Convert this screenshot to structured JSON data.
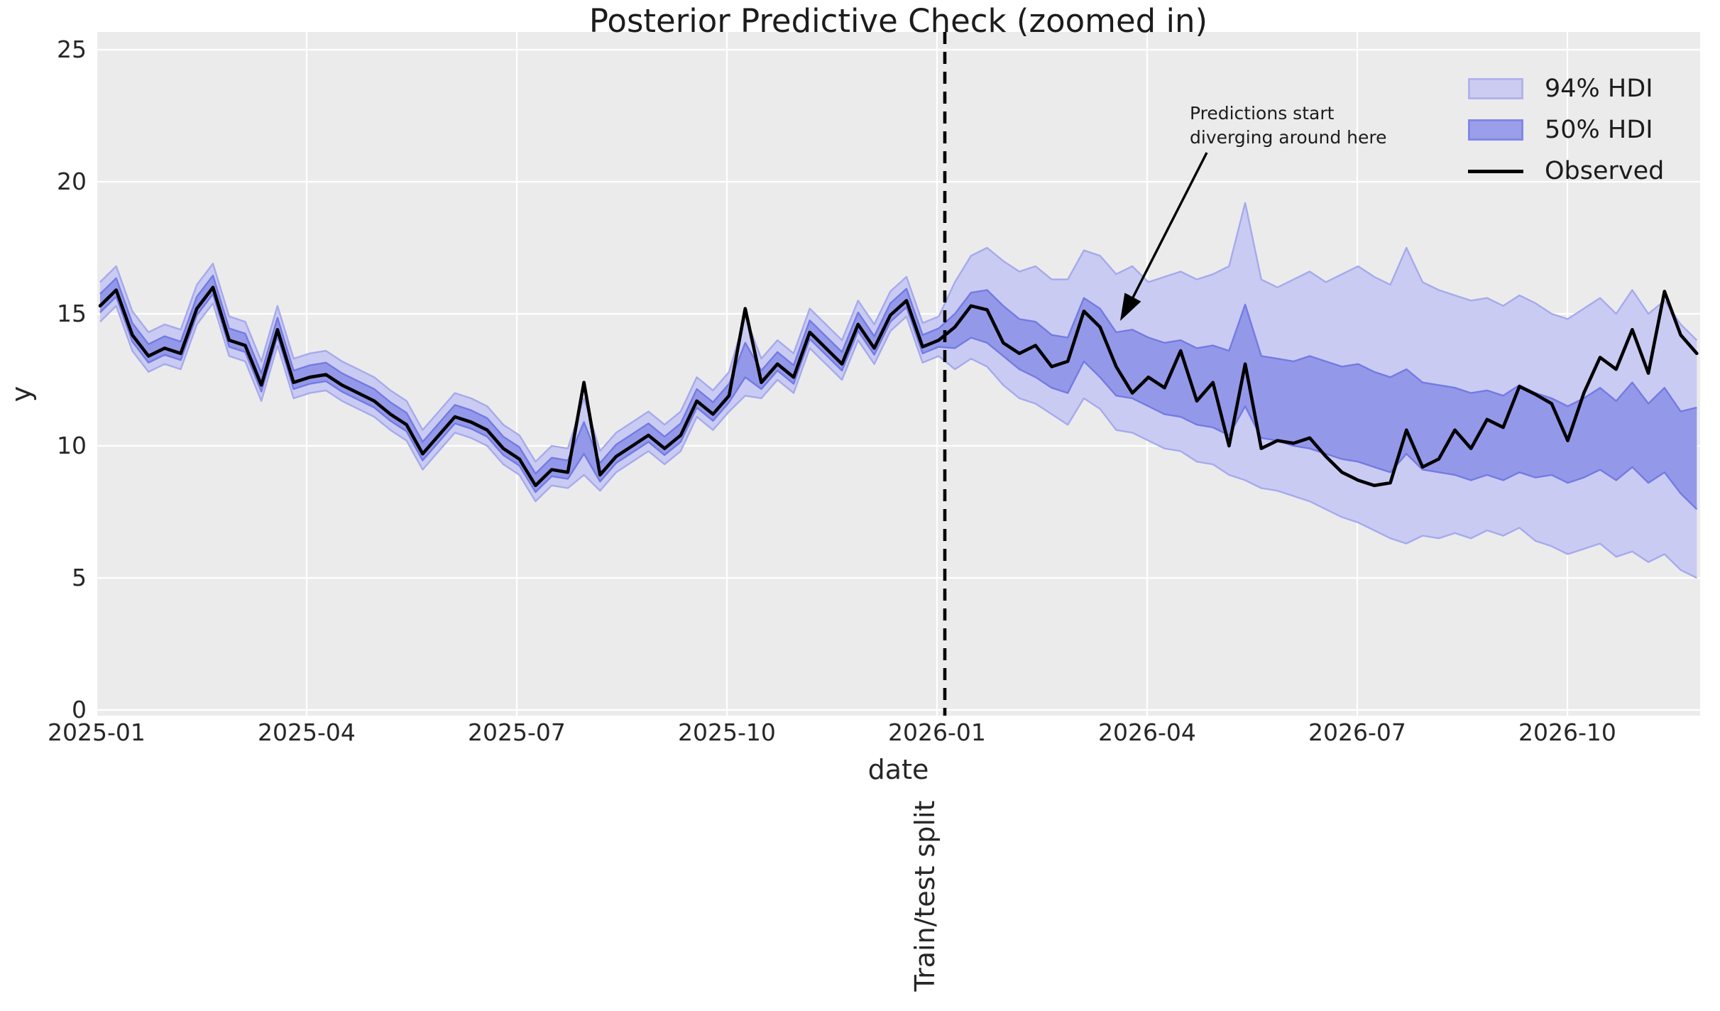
{
  "title": "Posterior Predictive Check (zoomed in)",
  "axes": {
    "xlabel": "date",
    "ylabel": "y",
    "x_tick_labels": [
      "2025-01",
      "2025-04",
      "2025-07",
      "2025-10",
      "2026-01",
      "2026-04",
      "2026-07",
      "2026-10"
    ],
    "y_tick_labels": [
      "0",
      "5",
      "10",
      "15",
      "20",
      "25"
    ]
  },
  "legend": {
    "entries": [
      {
        "label": "94% HDI",
        "swatch": "band-light"
      },
      {
        "label": "50% HDI",
        "swatch": "band-dark"
      },
      {
        "label": "Observed",
        "swatch": "black-line"
      }
    ]
  },
  "annotation": {
    "text": "Predictions start\ndiverging around here"
  },
  "split_label": "Train/test split",
  "colors": {
    "axes_background": "#ebebeb",
    "figure_background": "#ffffff",
    "gridline": "#ffffff",
    "hdi94_fill": "#c9cbf2",
    "hdi94_edge": "#a6aaec",
    "hdi50_fill": "#9399e8",
    "hdi50_edge": "#747ae3",
    "observed_line": "#000000",
    "split_line": "#000000",
    "text": "#262626"
  },
  "chart_data": {
    "type": "line",
    "description": "Posterior predictive check: observed weekly series with 94% and 50% HDI bands; vertical dashed line marks train/test split at 2026-01.",
    "x_start": "2025-01-05",
    "x_freq": "weekly",
    "n_points": 100,
    "split_index": 52,
    "ylim": [
      0,
      25
    ],
    "y_gridline_values": [
      0,
      5,
      10,
      15,
      20,
      25
    ],
    "observed": [
      15.3,
      15.9,
      14.2,
      13.4,
      13.7,
      13.5,
      15.2,
      16.0,
      14.0,
      13.8,
      12.3,
      14.4,
      12.4,
      12.6,
      12.7,
      12.3,
      12.0,
      11.7,
      11.2,
      10.8,
      9.7,
      10.4,
      11.1,
      10.9,
      10.6,
      9.9,
      9.5,
      8.5,
      9.1,
      9.0,
      12.4,
      8.9,
      9.6,
      10.0,
      10.4,
      9.9,
      10.4,
      11.7,
      11.2,
      11.9,
      15.2,
      12.4,
      13.1,
      12.6,
      14.3,
      13.7,
      13.1,
      14.6,
      13.7,
      14.95,
      15.5,
      13.75,
      14.0,
      14.5,
      15.3,
      15.15,
      13.9,
      13.5,
      13.8,
      13.0,
      13.2,
      15.1,
      14.5,
      13.0,
      12.0,
      12.6,
      12.2,
      13.6,
      11.7,
      12.4,
      10.0,
      13.1,
      9.9,
      10.2,
      10.1,
      10.3,
      9.6,
      9.0,
      8.7,
      8.5,
      8.6,
      10.6,
      9.2,
      9.5,
      10.6,
      9.9,
      11.0,
      10.7,
      12.25,
      11.95,
      11.6,
      10.2,
      12.0,
      13.35,
      12.9,
      14.4,
      12.75,
      15.85,
      14.2,
      13.5
    ],
    "hdi94_lower": [
      14.7,
      15.3,
      13.6,
      12.8,
      13.1,
      12.9,
      14.6,
      15.4,
      13.4,
      13.2,
      11.7,
      13.8,
      11.8,
      12.0,
      12.1,
      11.7,
      11.4,
      11.1,
      10.6,
      10.2,
      9.1,
      9.8,
      10.5,
      10.3,
      10.0,
      9.3,
      8.9,
      7.9,
      8.5,
      8.4,
      8.9,
      8.3,
      9.0,
      9.4,
      9.8,
      9.3,
      9.8,
      11.1,
      10.6,
      11.3,
      11.9,
      11.8,
      12.5,
      12.0,
      13.7,
      13.1,
      12.5,
      14.0,
      13.1,
      14.35,
      14.9,
      13.15,
      13.4,
      12.9,
      13.3,
      13.0,
      12.3,
      11.8,
      11.6,
      11.2,
      10.8,
      11.8,
      11.4,
      10.6,
      10.5,
      10.2,
      9.9,
      9.8,
      9.4,
      9.3,
      8.9,
      8.7,
      8.4,
      8.3,
      8.1,
      7.9,
      7.6,
      7.3,
      7.1,
      6.8,
      6.5,
      6.3,
      6.6,
      6.5,
      6.7,
      6.5,
      6.8,
      6.6,
      6.9,
      6.4,
      6.2,
      5.9,
      6.1,
      6.3,
      5.8,
      6.0,
      5.6,
      5.9,
      5.3,
      5.0
    ],
    "hdi94_upper": [
      16.2,
      16.8,
      15.1,
      14.3,
      14.6,
      14.4,
      16.1,
      16.9,
      14.9,
      14.7,
      13.2,
      15.3,
      13.3,
      13.5,
      13.6,
      13.2,
      12.9,
      12.6,
      12.1,
      11.7,
      10.6,
      11.3,
      12.0,
      11.8,
      11.5,
      10.8,
      10.4,
      9.4,
      10.0,
      9.9,
      11.8,
      9.8,
      10.5,
      10.9,
      11.3,
      10.8,
      11.3,
      12.6,
      12.1,
      12.8,
      14.9,
      13.3,
      14.0,
      13.5,
      15.2,
      14.6,
      14.0,
      15.5,
      14.6,
      15.85,
      16.4,
      14.65,
      14.9,
      16.2,
      17.2,
      17.5,
      17.0,
      16.6,
      16.8,
      16.3,
      16.3,
      17.4,
      17.2,
      16.5,
      16.8,
      16.2,
      16.4,
      16.6,
      16.3,
      16.5,
      16.8,
      19.2,
      16.3,
      16.0,
      16.3,
      16.6,
      16.2,
      16.5,
      16.8,
      16.4,
      16.1,
      17.5,
      16.2,
      15.9,
      15.7,
      15.5,
      15.6,
      15.3,
      15.7,
      15.4,
      15.0,
      14.8,
      15.2,
      15.6,
      15.0,
      15.9,
      15.0,
      15.5,
      14.6,
      14.0
    ],
    "hdi50_lower": [
      15.05,
      15.65,
      13.95,
      13.15,
      13.45,
      13.25,
      14.95,
      15.75,
      13.75,
      13.55,
      12.05,
      14.15,
      12.15,
      12.35,
      12.45,
      12.05,
      11.75,
      11.45,
      10.95,
      10.55,
      9.45,
      10.15,
      10.85,
      10.65,
      10.35,
      9.65,
      9.25,
      8.25,
      8.85,
      8.75,
      9.7,
      8.65,
      9.35,
      9.75,
      10.15,
      9.65,
      10.15,
      11.45,
      10.95,
      11.65,
      12.6,
      12.15,
      12.85,
      12.35,
      14.05,
      13.45,
      12.85,
      14.35,
      13.45,
      14.7,
      15.25,
      13.5,
      13.75,
      13.7,
      14.1,
      13.9,
      13.4,
      12.9,
      12.6,
      12.2,
      12.0,
      13.2,
      12.6,
      11.9,
      11.8,
      11.5,
      11.2,
      11.1,
      10.8,
      10.7,
      10.4,
      11.5,
      10.3,
      10.2,
      10.0,
      9.9,
      9.7,
      9.5,
      9.4,
      9.2,
      9.0,
      9.7,
      9.1,
      9.0,
      8.9,
      8.7,
      8.9,
      8.7,
      9.0,
      8.8,
      8.9,
      8.6,
      8.8,
      9.1,
      8.7,
      9.2,
      8.6,
      9.0,
      8.2,
      7.6
    ],
    "hdi50_upper": [
      15.75,
      16.35,
      14.65,
      13.85,
      14.15,
      13.95,
      15.65,
      16.45,
      14.45,
      14.25,
      12.75,
      14.85,
      12.85,
      13.05,
      13.15,
      12.75,
      12.45,
      12.15,
      11.65,
      11.25,
      10.15,
      10.85,
      11.55,
      11.35,
      11.05,
      10.35,
      9.95,
      8.95,
      9.55,
      9.45,
      10.9,
      9.35,
      10.05,
      10.45,
      10.85,
      10.35,
      10.85,
      12.15,
      11.65,
      12.35,
      13.9,
      12.85,
      13.55,
      13.05,
      14.75,
      14.15,
      13.55,
      15.05,
      14.15,
      15.4,
      15.95,
      14.2,
      14.45,
      15.0,
      15.8,
      15.9,
      15.3,
      14.8,
      14.7,
      14.2,
      14.1,
      15.6,
      15.2,
      14.3,
      14.4,
      14.1,
      13.9,
      14.0,
      13.7,
      13.8,
      13.6,
      15.35,
      13.4,
      13.3,
      13.2,
      13.4,
      13.2,
      13.0,
      13.1,
      12.8,
      12.6,
      12.9,
      12.4,
      12.3,
      12.2,
      12.0,
      12.1,
      11.9,
      12.3,
      12.0,
      11.8,
      11.5,
      11.8,
      12.2,
      11.7,
      12.4,
      11.6,
      12.2,
      11.3,
      11.45
    ],
    "legend_position": "upper right",
    "grid": true
  }
}
